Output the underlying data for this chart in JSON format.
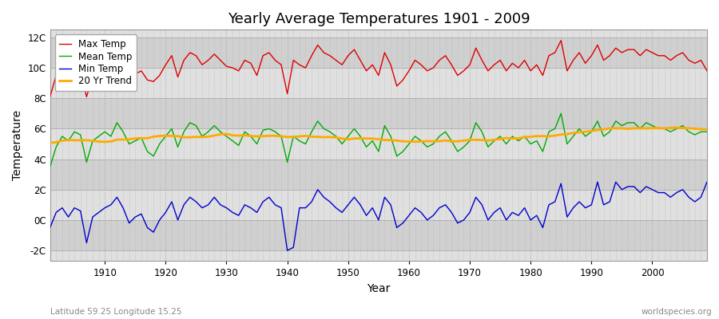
{
  "title": "Yearly Average Temperatures 1901 - 2009",
  "xlabel": "Year",
  "ylabel": "Temperature",
  "footnote_left": "Latitude 59.25 Longitude 15.25",
  "footnote_right": "worldspecies.org",
  "ylim": [
    -2.7,
    12.5
  ],
  "yticks": [
    -2,
    0,
    2,
    4,
    6,
    8,
    10,
    12
  ],
  "ytick_labels": [
    "-2C",
    "0C",
    "2C",
    "4C",
    "6C",
    "8C",
    "10C",
    "12C"
  ],
  "start_year": 1901,
  "end_year": 2009,
  "colors": {
    "max_temp": "#dd0000",
    "mean_temp": "#00aa00",
    "min_temp": "#0000cc",
    "trend": "#ffaa00",
    "band_light": "#e0e0e0",
    "band_dark": "#d0d0d0",
    "grid_v": "#bbbbbb",
    "outer_bg": "#ffffff"
  },
  "legend": [
    "Max Temp",
    "Mean Temp",
    "Min Temp",
    "20 Yr Trend"
  ],
  "max_temps": [
    8.1,
    9.5,
    9.2,
    9.3,
    9.8,
    9.6,
    8.1,
    9.4,
    9.7,
    9.9,
    10.0,
    11.2,
    10.5,
    9.4,
    9.6,
    9.8,
    9.2,
    9.1,
    9.5,
    10.2,
    10.8,
    9.4,
    10.5,
    11.0,
    10.8,
    10.2,
    10.5,
    10.9,
    10.5,
    10.1,
    10.0,
    9.8,
    10.5,
    10.3,
    9.5,
    10.8,
    11.0,
    10.5,
    10.2,
    8.3,
    10.5,
    10.2,
    10.0,
    10.8,
    11.5,
    11.0,
    10.8,
    10.5,
    10.2,
    10.8,
    11.2,
    10.5,
    9.8,
    10.2,
    9.5,
    11.0,
    10.2,
    8.8,
    9.2,
    9.8,
    10.5,
    10.2,
    9.8,
    10.0,
    10.5,
    10.8,
    10.2,
    9.5,
    9.8,
    10.2,
    11.3,
    10.5,
    9.8,
    10.2,
    10.5,
    9.8,
    10.3,
    10.0,
    10.5,
    9.8,
    10.2,
    9.5,
    10.8,
    11.0,
    11.8,
    9.8,
    10.5,
    11.0,
    10.3,
    10.8,
    11.5,
    10.5,
    10.8,
    11.3,
    11.0,
    11.2,
    11.2,
    10.8,
    11.2,
    11.0,
    10.8,
    10.8,
    10.5,
    10.8,
    11.0,
    10.5,
    10.3,
    10.5,
    9.8
  ],
  "mean_temps": [
    3.5,
    4.8,
    5.5,
    5.2,
    5.8,
    5.6,
    3.8,
    5.2,
    5.5,
    5.8,
    5.5,
    6.4,
    5.8,
    5.0,
    5.2,
    5.4,
    4.5,
    4.2,
    5.0,
    5.5,
    6.0,
    4.8,
    5.8,
    6.4,
    6.2,
    5.5,
    5.8,
    6.2,
    5.8,
    5.5,
    5.2,
    4.9,
    5.8,
    5.5,
    5.0,
    5.9,
    6.0,
    5.8,
    5.5,
    3.8,
    5.5,
    5.2,
    5.0,
    5.8,
    6.5,
    6.0,
    5.8,
    5.5,
    5.0,
    5.5,
    6.0,
    5.5,
    4.8,
    5.2,
    4.5,
    6.2,
    5.5,
    4.2,
    4.5,
    5.0,
    5.5,
    5.2,
    4.8,
    5.0,
    5.5,
    5.8,
    5.2,
    4.5,
    4.8,
    5.2,
    6.4,
    5.8,
    4.8,
    5.2,
    5.5,
    5.0,
    5.5,
    5.2,
    5.5,
    5.0,
    5.2,
    4.5,
    5.8,
    6.0,
    7.0,
    5.0,
    5.5,
    6.0,
    5.5,
    5.8,
    6.5,
    5.5,
    5.8,
    6.5,
    6.2,
    6.4,
    6.4,
    6.0,
    6.4,
    6.2,
    6.0,
    6.0,
    5.8,
    6.0,
    6.2,
    5.8,
    5.6,
    5.8,
    5.8
  ],
  "min_temps": [
    -0.5,
    0.5,
    0.8,
    0.2,
    0.8,
    0.6,
    -1.5,
    0.2,
    0.5,
    0.8,
    1.0,
    1.5,
    0.8,
    -0.2,
    0.2,
    0.4,
    -0.5,
    -0.8,
    0.0,
    0.5,
    1.2,
    0.0,
    1.0,
    1.5,
    1.2,
    0.8,
    1.0,
    1.5,
    1.0,
    0.8,
    0.5,
    0.3,
    1.0,
    0.8,
    0.5,
    1.2,
    1.5,
    1.0,
    0.8,
    -2.0,
    -1.8,
    0.8,
    0.8,
    1.2,
    2.0,
    1.5,
    1.2,
    0.8,
    0.5,
    1.0,
    1.5,
    1.0,
    0.3,
    0.8,
    0.0,
    1.5,
    1.0,
    -0.5,
    -0.2,
    0.3,
    0.8,
    0.5,
    0.0,
    0.3,
    0.8,
    1.0,
    0.5,
    -0.2,
    0.0,
    0.5,
    1.5,
    1.0,
    0.0,
    0.5,
    0.8,
    0.0,
    0.5,
    0.3,
    0.8,
    0.0,
    0.3,
    -0.5,
    1.0,
    1.2,
    2.4,
    0.2,
    0.8,
    1.2,
    0.8,
    1.0,
    2.5,
    1.0,
    1.2,
    2.5,
    2.0,
    2.2,
    2.2,
    1.8,
    2.2,
    2.0,
    1.8,
    1.8,
    1.5,
    1.8,
    2.0,
    1.5,
    1.2,
    1.5,
    2.5
  ]
}
